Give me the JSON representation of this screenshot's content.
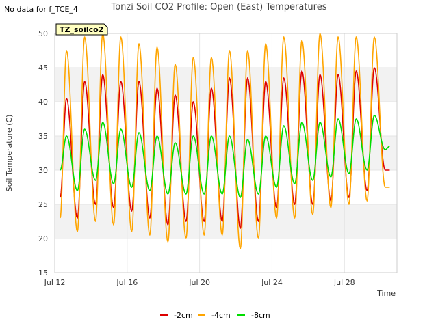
{
  "header": {
    "note": "No data for f_TCE_4",
    "title": "Tonzi Soil CO2 Profile: Open (East) Temperatures"
  },
  "chart_data": {
    "type": "line",
    "title": "Tonzi Soil CO2 Profile: Open (East) Temperatures",
    "xlabel": "Time",
    "ylabel": "Soil Temperature (C)",
    "site_label": "TZ_soilco2",
    "xlim": [
      12.0,
      30.9
    ],
    "ylim": [
      15,
      50
    ],
    "yticks": [
      15,
      20,
      25,
      30,
      35,
      40,
      45,
      50
    ],
    "xticks": [
      {
        "value": 12,
        "label": "Jul 12"
      },
      {
        "value": 16,
        "label": "Jul 16"
      },
      {
        "value": 20,
        "label": "Jul 20"
      },
      {
        "value": 24,
        "label": "Jul 24"
      },
      {
        "value": 28,
        "label": "Jul 28"
      }
    ],
    "grid": true,
    "bands": [
      [
        20,
        25
      ],
      [
        30,
        35
      ],
      [
        40,
        45
      ]
    ],
    "legend_position": "bottom",
    "peak_hour": 0.65,
    "series": [
      {
        "name": "-2cm",
        "color": "#dd0000",
        "start": 12.3,
        "end": 30.5,
        "start_value": 26.0,
        "end_value": 30.0,
        "daily_max": [
          40.5,
          43.0,
          44.0,
          43.0,
          43.0,
          42.0,
          41.0,
          40.0,
          42.0,
          43.5,
          43.5,
          43.0,
          43.5,
          44.5,
          44.0,
          44.0,
          44.5,
          45.0,
          44.5
        ],
        "daily_min": [
          22.5,
          23.0,
          25.0,
          24.5,
          24.0,
          23.0,
          22.0,
          22.5,
          22.5,
          22.5,
          21.5,
          22.5,
          24.5,
          25.0,
          25.0,
          25.5,
          26.0,
          27.0,
          30.0
        ]
      },
      {
        "name": "-4cm",
        "color": "#ffa500",
        "start": 12.3,
        "end": 30.5,
        "start_value": 23.0,
        "end_value": 27.5,
        "daily_max": [
          47.5,
          49.5,
          50.0,
          49.5,
          48.5,
          48.0,
          45.5,
          46.5,
          46.5,
          47.5,
          47.5,
          48.5,
          49.5,
          49.0,
          50.0,
          49.5,
          49.5,
          49.5,
          49.5
        ],
        "daily_min": [
          20.0,
          21.0,
          22.5,
          22.0,
          21.0,
          20.5,
          19.5,
          20.0,
          20.5,
          20.5,
          18.5,
          20.0,
          23.0,
          23.0,
          23.5,
          24.5,
          25.0,
          25.5,
          27.5
        ]
      },
      {
        "name": "-8cm",
        "color": "#00dd00",
        "start": 12.3,
        "end": 30.5,
        "start_value": 30.0,
        "end_value": 33.5,
        "daily_max": [
          35.0,
          36.0,
          37.0,
          36.0,
          35.5,
          35.0,
          34.0,
          35.0,
          35.0,
          35.0,
          34.5,
          35.0,
          36.5,
          37.0,
          37.0,
          37.5,
          37.5,
          38.0,
          37.0
        ],
        "daily_min": [
          26.5,
          27.0,
          28.5,
          28.0,
          27.5,
          27.0,
          26.5,
          26.5,
          26.5,
          26.5,
          26.0,
          26.5,
          27.5,
          28.0,
          28.5,
          29.0,
          29.5,
          30.0,
          33.0
        ]
      }
    ]
  }
}
